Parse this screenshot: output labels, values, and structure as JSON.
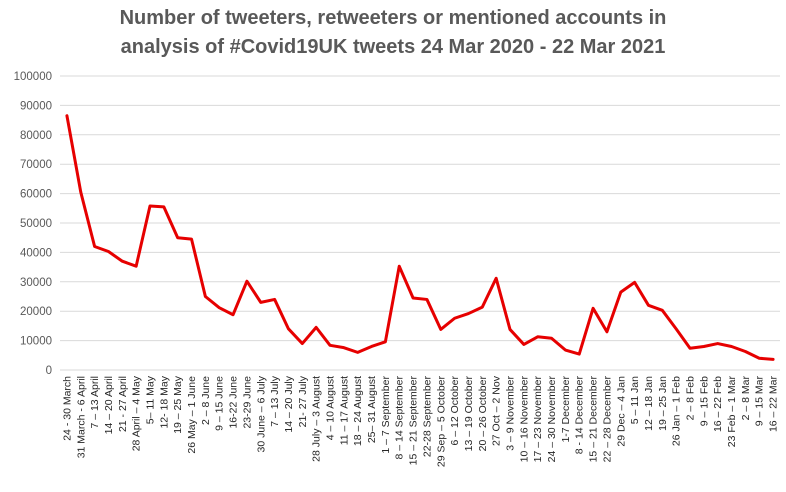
{
  "chart_data": {
    "type": "line",
    "title_lines": [
      "Number of tweeters, retweeters or mentioned accounts in",
      "analysis of #Covid19UK tweets 24 Mar 2020 - 22 Mar 2021"
    ],
    "xlabel": "",
    "ylabel": "",
    "ylim": [
      0,
      100000
    ],
    "yticks": [
      0,
      10000,
      20000,
      30000,
      40000,
      50000,
      60000,
      70000,
      80000,
      90000,
      100000
    ],
    "grid": "horizontal",
    "legend": "none",
    "categories": [
      "24 - 30 March",
      "31 March - 6 April",
      "7 – 13 April",
      "14 – 20 April",
      "21 - 27 April",
      "28 April – 4 May",
      "5– 11 May",
      "12- 18 May",
      "19 – 25 May",
      "26 May – 1 June",
      "2 – 8 June",
      "9 – 15 June",
      "16-22 June",
      "23-29 June",
      "30 June – 6 July",
      "7 – 13 July",
      "14 – 20 July",
      "21- 27 July",
      "28 July – 3 August",
      "4 – 10 August",
      "11 – 17 August",
      "18 – 24 August",
      "25– 31 August",
      "1 – 7 September",
      "8 – 14 September",
      "15 – 21 September",
      "22-28 September",
      "29 Sep – 5 October",
      "6 – 12 October",
      "13 – 19 October",
      "20 – 26 October",
      "27 Oct – 2 Nov",
      "3 – 9 November",
      "10 – 16 November",
      "17 – 23 November",
      "24 – 30 November",
      "1-7 December",
      "8 - 14 December",
      "15 – 21 December",
      "22 – 28 December",
      "29 Dec – 4 Jan",
      "5 – 11 Jan",
      "12 – 18 Jan",
      "19 – 25 Jan",
      "26 Jan – 1 Feb",
      "2 – 8 Feb",
      "9 – 15 Feb",
      "16 – 22 Feb",
      "23 Feb – 1 Mar",
      "2 – 8 Mar",
      "9 – 15 Mar",
      "16 – 22 Mar"
    ],
    "series": [
      {
        "color": "#e60000",
        "values": [
          86500,
          60500,
          42000,
          40300,
          37000,
          35300,
          55800,
          55500,
          45000,
          44500,
          25000,
          21200,
          18800,
          30200,
          23000,
          24000,
          14000,
          9000,
          14500,
          8400,
          7600,
          6000,
          8000,
          9600,
          35300,
          24500,
          24000,
          13800,
          17600,
          19200,
          21400,
          31200,
          13800,
          8700,
          11300,
          10800,
          6800,
          5400,
          21000,
          13000,
          26500,
          29800,
          22000,
          20300,
          14000,
          7400,
          8000,
          9000,
          8000,
          6300,
          4000,
          3600
        ]
      }
    ]
  }
}
